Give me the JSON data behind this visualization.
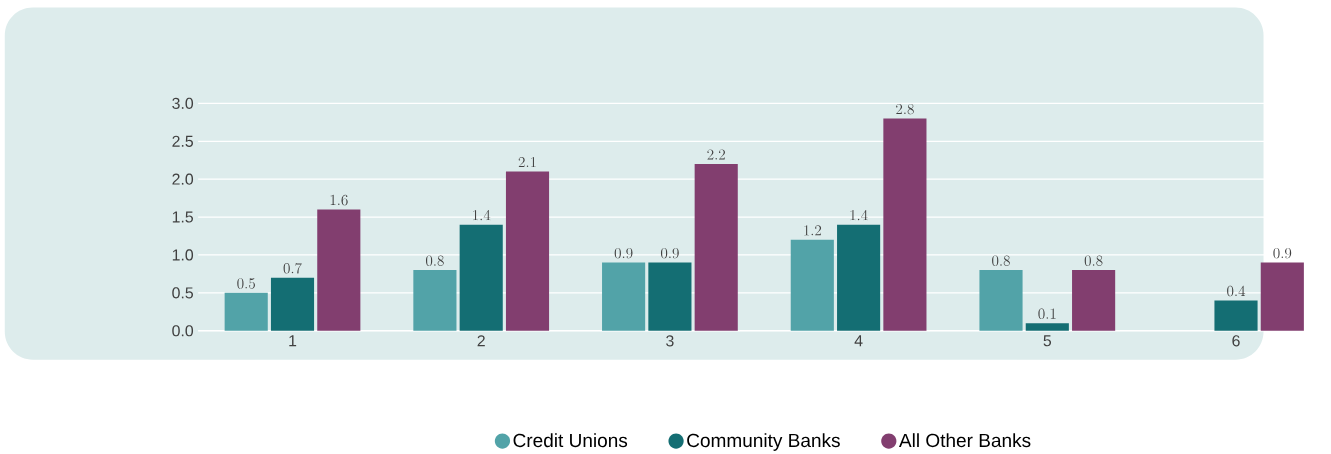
{
  "chart_data": {
    "type": "bar",
    "categories": [
      "1",
      "2",
      "3",
      "4",
      "5",
      "6"
    ],
    "series": [
      {
        "name": "Credit Unions",
        "color": "#52a3a8",
        "values": [
          0.5,
          0.8,
          0.9,
          1.2,
          0.8,
          null
        ]
      },
      {
        "name": "Community Banks",
        "color": "#146e73",
        "values": [
          0.7,
          1.4,
          0.9,
          1.4,
          0.1,
          0.4
        ]
      },
      {
        "name": "All Other Banks",
        "color": "#823e6f",
        "values": [
          1.6,
          2.1,
          2.2,
          2.8,
          0.8,
          0.9
        ]
      }
    ],
    "ylim": [
      0,
      3.0
    ],
    "yticks": [
      {
        "value": 0,
        "label": "0.0"
      },
      {
        "value": 0.5,
        "label": "0.5"
      },
      {
        "value": 1.0,
        "label": "1.0"
      },
      {
        "value": 1.5,
        "label": "1.5"
      },
      {
        "value": 2.0,
        "label": "2.0"
      },
      {
        "value": 2.5,
        "label": "2.5"
      },
      {
        "value": 3.0,
        "label": "3.0"
      }
    ],
    "grid": "y",
    "legend": "bottom",
    "data_labels": true
  }
}
